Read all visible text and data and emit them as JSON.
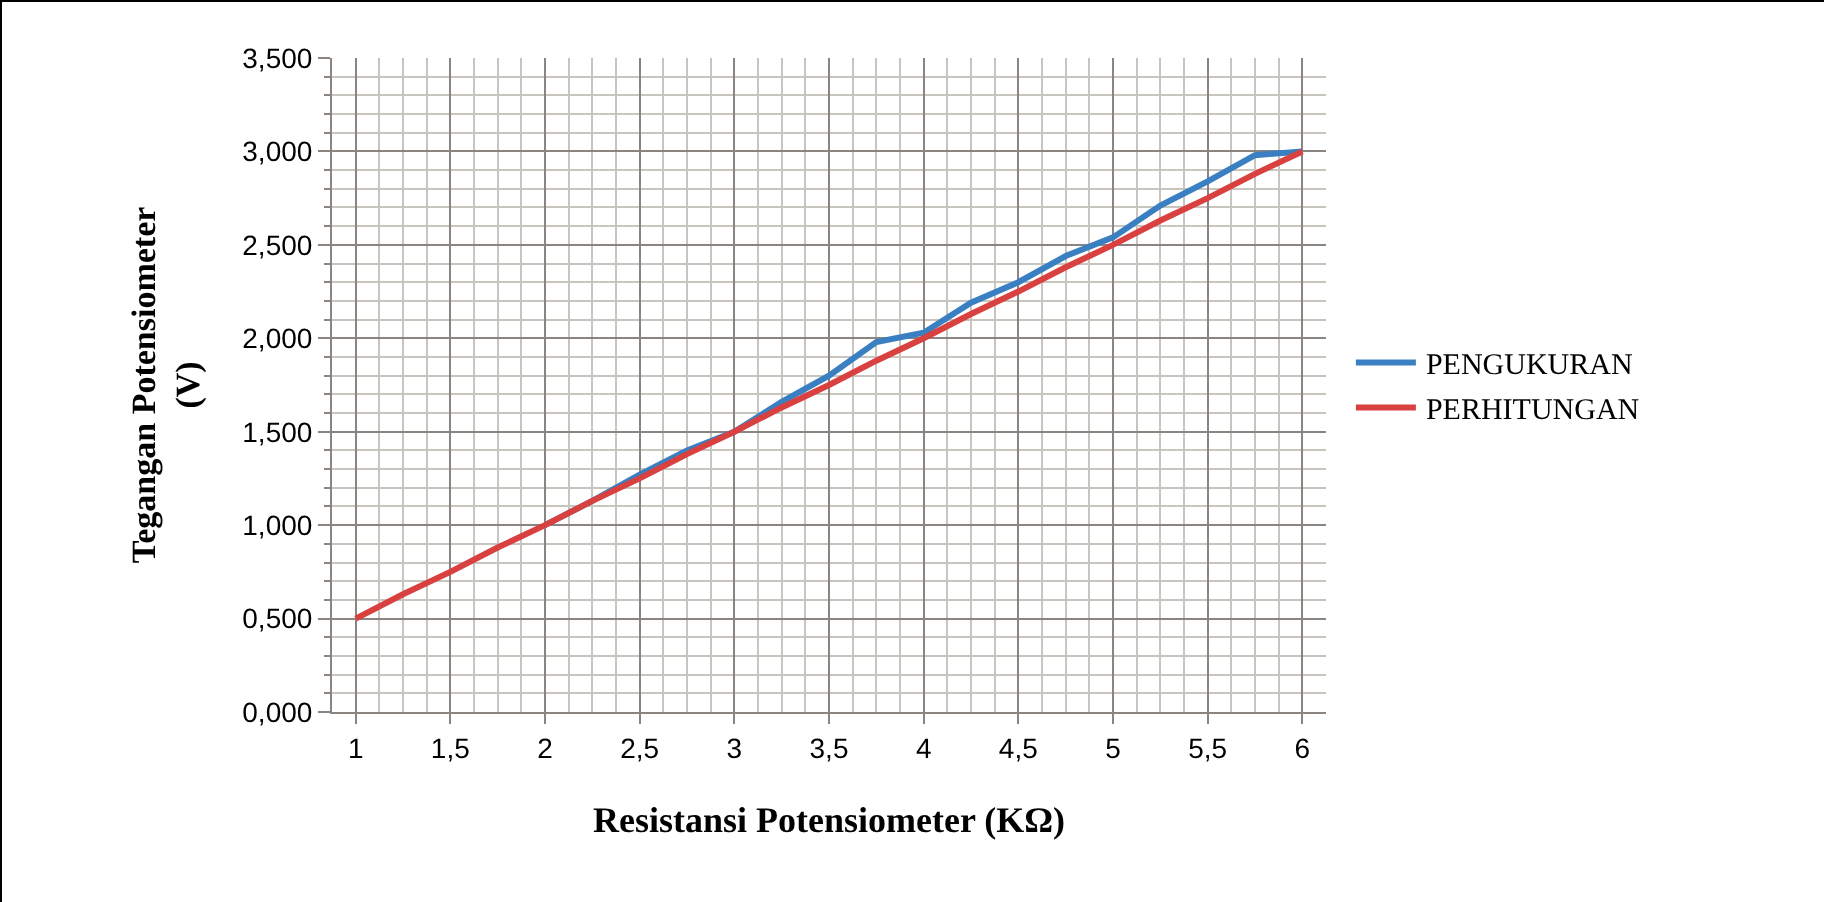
{
  "chart_data": {
    "type": "line",
    "xlabel": "Resistansi Potensiometer (KΩ)",
    "ylabel": "Tegangan Potensiometer\n(V)",
    "x": [
      1,
      1.25,
      1.5,
      1.75,
      2,
      2.25,
      2.5,
      2.75,
      3,
      3.25,
      3.5,
      3.75,
      4,
      4.25,
      4.5,
      4.75,
      5,
      5.25,
      5.5,
      5.75,
      6
    ],
    "series": [
      {
        "name": "PENGUKURAN",
        "color": "#3a7fc1",
        "values": [
          null,
          null,
          null,
          null,
          1,
          1.13,
          1.27,
          1.4,
          1.5,
          1.66,
          1.8,
          1.98,
          2.03,
          2.19,
          2.3,
          2.44,
          2.54,
          2.71,
          2.84,
          2.98,
          3
        ]
      },
      {
        "name": "PERHITUNGAN",
        "color": "#d94040",
        "values": [
          0.5,
          0.63,
          0.75,
          0.88,
          1,
          1.13,
          1.25,
          1.38,
          1.5,
          1.63,
          1.75,
          1.88,
          2,
          2.13,
          2.25,
          2.38,
          2.5,
          2.63,
          2.75,
          2.88,
          3
        ]
      }
    ],
    "xlim": [
      0.875,
      6.125
    ],
    "xticks": [
      1,
      {
        "value": 1.5,
        "label": "1,5"
      },
      2,
      {
        "value": 2.5,
        "label": "2,5"
      },
      3,
      {
        "value": 3.5,
        "label": "3,5"
      },
      4,
      {
        "value": 4.5,
        "label": "4,5"
      },
      5,
      {
        "value": 5.5,
        "label": "5,5"
      },
      6
    ],
    "ylim": [
      0,
      3.5
    ],
    "yticks": [
      {
        "value": 0,
        "label": "0,000"
      },
      {
        "value": 0.5,
        "label": "0,500"
      },
      {
        "value": 1,
        "label": "1,000"
      },
      {
        "value": 1.5,
        "label": "1,500"
      },
      {
        "value": 2,
        "label": "2,000"
      },
      {
        "value": 2.5,
        "label": "2,500"
      },
      {
        "value": 3,
        "label": "3,000"
      },
      {
        "value": 3.5,
        "label": "3,500"
      }
    ],
    "grid": true,
    "legend": "right",
    "marker": "none",
    "line_style": "solid"
  }
}
